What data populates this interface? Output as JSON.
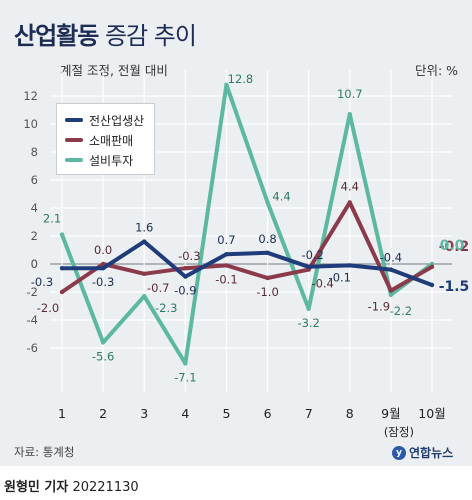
{
  "header": {
    "title_bold": "산업활동",
    "title_light": "증감 추이",
    "subtitle": "계절 조정, 전월 대비",
    "unit": "단위: %"
  },
  "footer": {
    "source": "자료: 통계청",
    "logo": "연합뉴스",
    "byline_name": "원형민 기자",
    "byline_date": "20221130"
  },
  "chart_data": {
    "type": "line",
    "categories": [
      "1",
      "2",
      "3",
      "4",
      "5",
      "6",
      "7",
      "8",
      "9월",
      "10월"
    ],
    "category_sublabels": [
      "",
      "",
      "",
      "",
      "",
      "",
      "",
      "",
      "(잠정)",
      ""
    ],
    "ylim": [
      -8,
      14
    ],
    "yticks": [
      -6,
      -4,
      -2,
      0,
      2,
      4,
      6,
      8,
      10,
      12
    ],
    "grid": true,
    "legend_position": "top-left",
    "series": [
      {
        "name": "전산업생산",
        "color": "#1f3b7a",
        "values": [
          -0.3,
          -0.3,
          1.6,
          -0.9,
          0.7,
          0.8,
          -0.2,
          -0.1,
          -0.4,
          -1.5
        ],
        "labels": [
          "-0.3",
          "-0.3",
          "1.6",
          "-0.9",
          "0.7",
          "0.8",
          "-0.2",
          "-0.1",
          "-0.4",
          "-1.5"
        ]
      },
      {
        "name": "소매판매",
        "color": "#8b3a4c",
        "values": [
          -2.0,
          0.0,
          -0.7,
          -0.3,
          -0.1,
          -1.0,
          -0.4,
          4.4,
          -1.9,
          -0.2
        ],
        "labels": [
          "-2.0",
          "0.0",
          "-0.7",
          "-0.3",
          "-0.1",
          "-1.0",
          "-0.4",
          "4.4",
          "-1.9",
          "-0.2"
        ]
      },
      {
        "name": "설비투자",
        "color": "#5cb8a0",
        "values": [
          2.1,
          -5.6,
          -2.3,
          -7.1,
          12.8,
          4.4,
          -3.2,
          10.7,
          -2.2,
          0.0
        ],
        "labels": [
          "2.1",
          "-5.6",
          "-2.3",
          "-7.1",
          "12.8",
          "4.4",
          "-3.2",
          "10.7",
          "-2.2",
          "0.0"
        ]
      }
    ]
  }
}
